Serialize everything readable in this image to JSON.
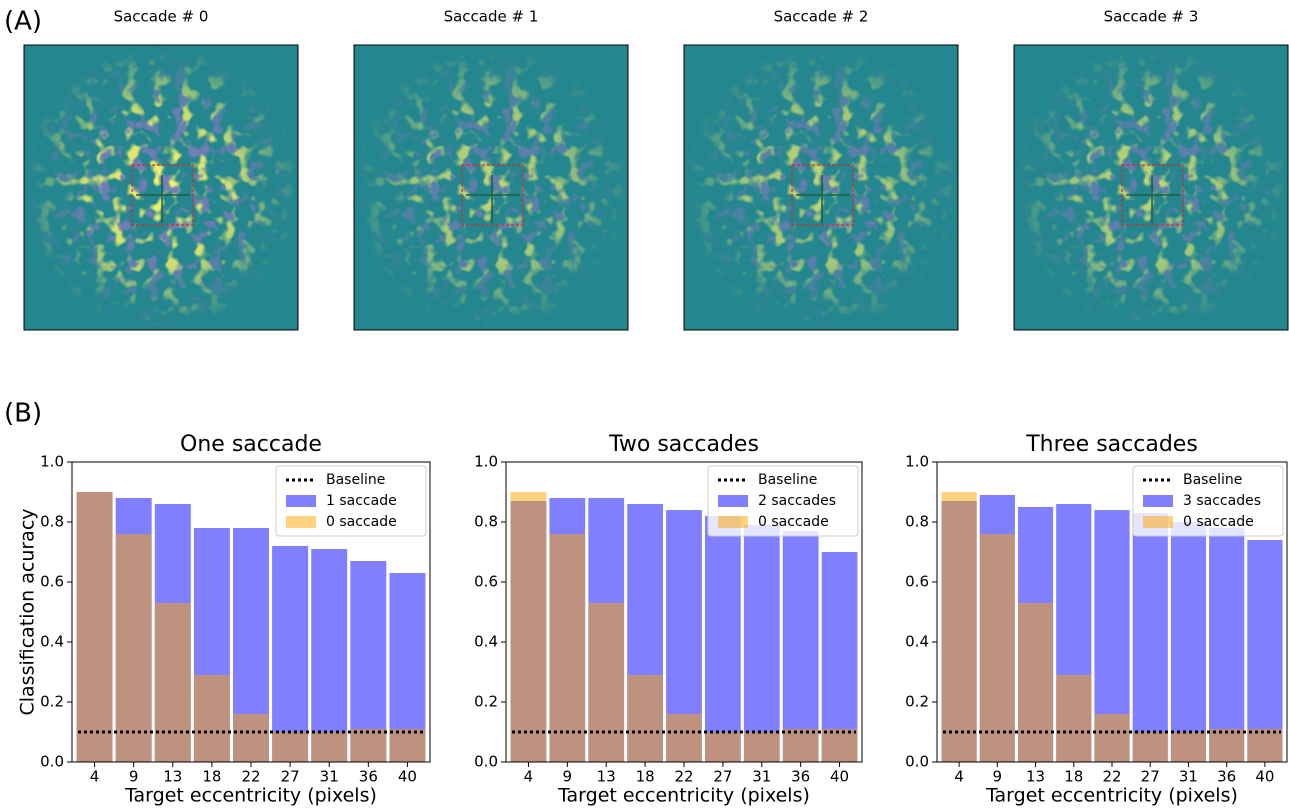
{
  "panel_a": {
    "label": "(A)",
    "images": [
      {
        "title": "Saccade # 0"
      },
      {
        "title": "Saccade # 1"
      },
      {
        "title": "Saccade # 2"
      },
      {
        "title": "Saccade # 3"
      }
    ]
  },
  "panel_b": {
    "label": "(B)"
  },
  "chart_data": [
    {
      "type": "bar",
      "title": "One saccade",
      "xlabel": "Target eccentricity (pixels)",
      "ylabel": "Classification acuracy",
      "categories": [
        "4",
        "9",
        "13",
        "18",
        "22",
        "27",
        "31",
        "36",
        "40"
      ],
      "series": [
        {
          "name": "1 saccade",
          "color": "#0000ff",
          "alpha": 0.5,
          "values": [
            0.9,
            0.88,
            0.86,
            0.78,
            0.78,
            0.72,
            0.71,
            0.67,
            0.63
          ]
        },
        {
          "name": "0 saccade",
          "color": "#ffa500",
          "alpha": 0.5,
          "values": [
            0.9,
            0.76,
            0.53,
            0.29,
            0.16,
            0.1,
            0.1,
            0.11,
            0.11
          ]
        }
      ],
      "baseline": {
        "name": "Baseline",
        "value": 0.1,
        "color": "#000000"
      },
      "ylim": [
        0,
        1
      ],
      "yticks": [
        {
          "value": 0,
          "label": "0.0"
        },
        0.2,
        0.4,
        0.6,
        0.8,
        {
          "value": 1,
          "label": "1.0"
        }
      ],
      "legend": "upper right"
    },
    {
      "type": "bar",
      "title": "Two saccades",
      "xlabel": "Target eccentricity (pixels)",
      "categories": [
        "4",
        "9",
        "13",
        "18",
        "22",
        "27",
        "31",
        "36",
        "40"
      ],
      "series": [
        {
          "name": "2 saccades",
          "color": "#0000ff",
          "alpha": 0.5,
          "values": [
            0.87,
            0.88,
            0.88,
            0.86,
            0.84,
            0.82,
            0.79,
            0.77,
            0.7
          ]
        },
        {
          "name": "0 saccade",
          "color": "#ffa500",
          "alpha": 0.5,
          "values": [
            0.9,
            0.76,
            0.53,
            0.29,
            0.16,
            0.1,
            0.1,
            0.11,
            0.11
          ]
        }
      ],
      "baseline": {
        "name": "Baseline",
        "value": 0.1,
        "color": "#000000"
      },
      "ylim": [
        0,
        1
      ],
      "yticks": [
        {
          "value": 0,
          "label": "0.0"
        },
        0.2,
        0.4,
        0.6,
        0.8,
        {
          "value": 1,
          "label": "1.0"
        }
      ],
      "legend": "upper right"
    },
    {
      "type": "bar",
      "title": "Three saccades",
      "xlabel": "Target eccentricity (pixels)",
      "categories": [
        "4",
        "9",
        "13",
        "18",
        "22",
        "27",
        "31",
        "36",
        "40"
      ],
      "series": [
        {
          "name": "3 saccades",
          "color": "#0000ff",
          "alpha": 0.5,
          "values": [
            0.87,
            0.89,
            0.85,
            0.86,
            0.84,
            0.83,
            0.8,
            0.78,
            0.74
          ]
        },
        {
          "name": "0 saccade",
          "color": "#ffa500",
          "alpha": 0.5,
          "values": [
            0.9,
            0.76,
            0.53,
            0.29,
            0.16,
            0.1,
            0.1,
            0.11,
            0.11
          ]
        }
      ],
      "baseline": {
        "name": "Baseline",
        "value": 0.1,
        "color": "#000000"
      },
      "ylim": [
        0,
        1
      ],
      "yticks": [
        {
          "value": 0,
          "label": "0.0"
        },
        0.2,
        0.4,
        0.6,
        0.8,
        {
          "value": 1,
          "label": "1.0"
        }
      ],
      "legend": "upper right"
    }
  ]
}
